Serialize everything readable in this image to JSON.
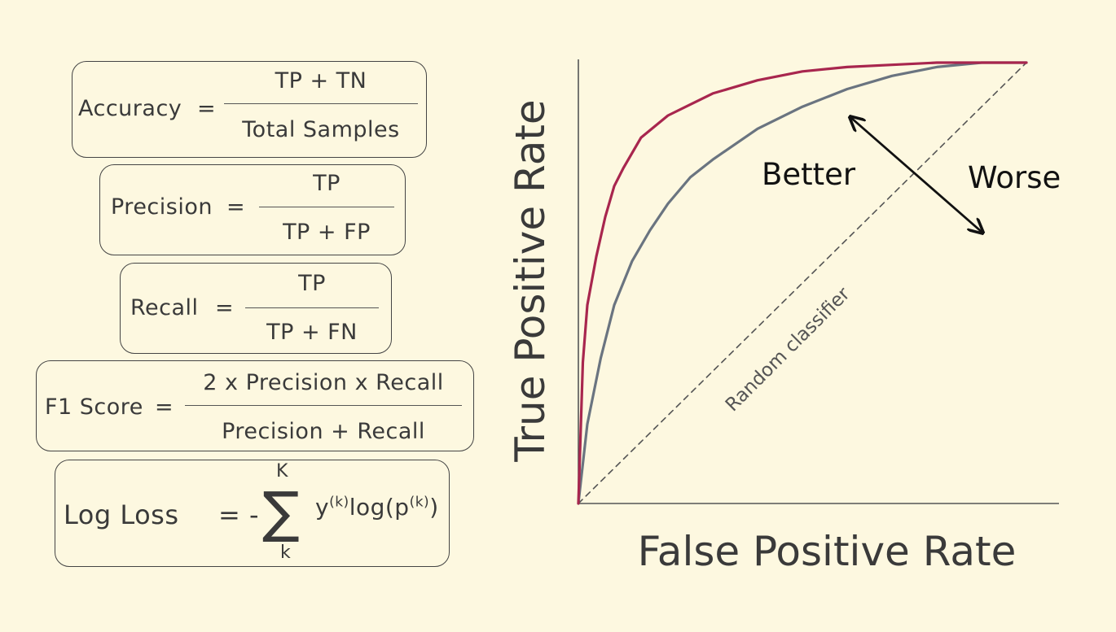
{
  "formulas": {
    "accuracy": {
      "label": "Accuracy",
      "eq": "=",
      "numerator": "TP + TN",
      "denominator": "Total Samples"
    },
    "precision": {
      "label": "Precision",
      "eq": "=",
      "numerator": "TP",
      "denominator": "TP + FP"
    },
    "recall": {
      "label": "Recall",
      "eq": "=",
      "numerator": "TP",
      "denominator": "TP + FN"
    },
    "f1": {
      "label": "F1 Score",
      "eq": "=",
      "numerator": "2 x Precision x Recall",
      "denominator": "Precision + Recall"
    },
    "logloss": {
      "label": "Log Loss",
      "eq": "= -",
      "sum_top": "K",
      "sum_bottom": "k",
      "sigma": "∑",
      "term": "y",
      "term_sup": "(k)",
      "log_part": "log(p",
      "log_sup": "(k)",
      "log_close": ")"
    }
  },
  "chart": {
    "xlabel": "False Positive Rate",
    "ylabel": "True Positive Rate",
    "random_label": "Random classifier",
    "better": "Better",
    "worse": "Worse",
    "colors": {
      "good": "#a8264e",
      "ok": "#6a7480",
      "axis": "#555555"
    }
  },
  "chart_data": {
    "type": "line",
    "xlabel": "False Positive Rate",
    "ylabel": "True Positive Rate",
    "xlim": [
      0,
      1
    ],
    "ylim": [
      0,
      1
    ],
    "series": [
      {
        "color": "#a8264e",
        "x": [
          0,
          0.01,
          0.02,
          0.04,
          0.06,
          0.08,
          0.1,
          0.14,
          0.2,
          0.3,
          0.4,
          0.5,
          0.6,
          0.7,
          0.8,
          0.9,
          1.0
        ],
        "y": [
          0,
          0.32,
          0.45,
          0.56,
          0.65,
          0.72,
          0.76,
          0.83,
          0.88,
          0.93,
          0.96,
          0.98,
          0.99,
          0.995,
          1.0,
          1.0,
          1.0
        ]
      },
      {
        "color": "#6a7480",
        "x": [
          0,
          0.02,
          0.05,
          0.08,
          0.12,
          0.16,
          0.2,
          0.25,
          0.3,
          0.4,
          0.5,
          0.6,
          0.7,
          0.8,
          0.9,
          1.0
        ],
        "y": [
          0,
          0.18,
          0.33,
          0.45,
          0.55,
          0.62,
          0.68,
          0.74,
          0.78,
          0.85,
          0.9,
          0.94,
          0.97,
          0.99,
          1.0,
          1.0
        ]
      },
      {
        "color": "#555555",
        "dashed": true,
        "x": [
          0,
          1
        ],
        "y": [
          0,
          1
        ]
      }
    ]
  }
}
